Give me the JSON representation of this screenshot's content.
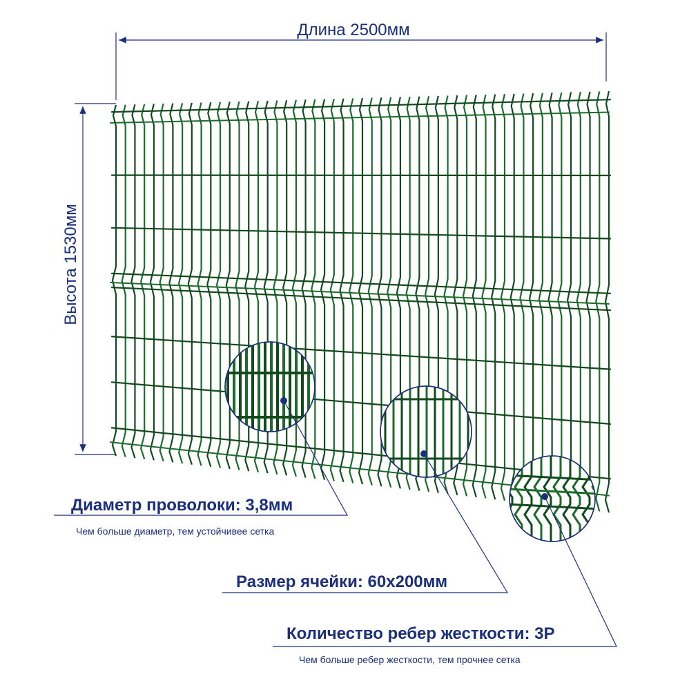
{
  "dimensions": {
    "length": "Длина 2500мм",
    "height": "Высота 1530мм"
  },
  "specs": {
    "wire_diameter": "Диаметр проволоки: 3,8мм",
    "wire_note": "Чем больше диаметр, тем устойчивее сетка",
    "cell_size": "Размер ячейки: 60x200мм",
    "ribs": "Количество ребер жесткости: 3Р",
    "ribs_note": "Чем больше ребер жесткости, тем прочнее сетка"
  },
  "colors": {
    "mesh": "#1d6b2a",
    "mesh_dark": "#124a1c",
    "annotation": "#1b2f7a"
  }
}
